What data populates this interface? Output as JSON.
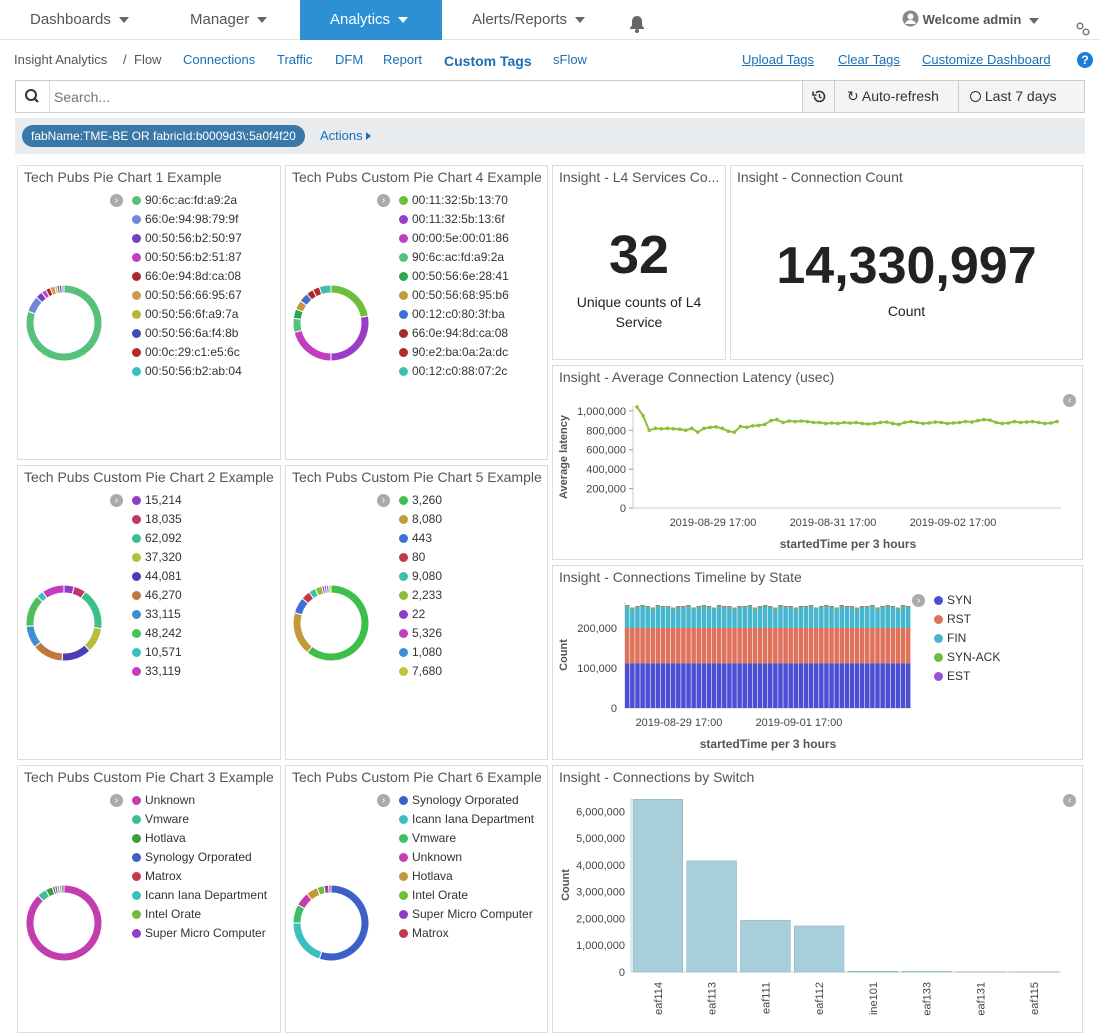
{
  "nav": {
    "dashboards": "Dashboards",
    "manager": "Manager",
    "analytics": "Analytics",
    "alerts": "Alerts/Reports",
    "welcome": "Welcome admin"
  },
  "subnav": {
    "crumb1": "Insight Analytics",
    "sep": "/",
    "crumb2": "Flow",
    "connections": "Connections",
    "traffic": "Traffic",
    "dfm": "DFM",
    "report": "Report",
    "custom_tags": "Custom Tags",
    "sflow": "sFlow",
    "upload": "Upload Tags",
    "clear": "Clear Tags",
    "customize": "Customize Dashboard"
  },
  "search": {
    "placeholder": "Search...",
    "autorefresh": "Auto-refresh",
    "range": "Last 7 days"
  },
  "filter": {
    "query": "fabName:TME-BE OR fabricId:b0009d3\\:5a0f4f20",
    "actions": "Actions"
  },
  "panels": {
    "p1": {
      "title": "Tech Pubs Pie Chart 1 Example",
      "legend": [
        "90:6c:ac:fd:a9:2a",
        "66:0e:94:98:79:9f",
        "00:50:56:b2:50:97",
        "00:50:56:b2:51:87",
        "66:0e:94:8d:ca:08",
        "00:50:56:66:95:67",
        "00:50:56:6f:a9:7a",
        "00:50:56:6a:f4:8b",
        "00:0c:29:c1:e5:6c",
        "00:50:56:b2:ab:04"
      ],
      "colors": [
        "#57c17b",
        "#6f87d8",
        "#6f42c1",
        "#c23dbf",
        "#a52a2a",
        "#d4974b",
        "#b5b53a",
        "#3d4fb5",
        "#b52a2a",
        "#3dbfbf"
      ],
      "slices": [
        80,
        7,
        3,
        2,
        2,
        2,
        1,
        1,
        1,
        1
      ]
    },
    "p4": {
      "title": "Tech Pubs Custom Pie Chart 4 Example",
      "legend": [
        "00:11:32:5b:13:70",
        "00:11:32:5b:13:6f",
        "00:00:5e:00:01:86",
        "90:6c:ac:fd:a9:2a",
        "00:50:56:6e:28:41",
        "00:50:56:68:95:b6",
        "00:12:c0:80:3f:ba",
        "66:0e:94:8d:ca:08",
        "90:e2:ba:0a:2a:dc",
        "00:12:c0:88:07:2c"
      ],
      "colors": [
        "#6cbf3a",
        "#9b3cc8",
        "#c23dbf",
        "#57c17b",
        "#2ea84a",
        "#c29a3a",
        "#3d6fd4",
        "#a52a2a",
        "#b52a2a",
        "#3dbfb0"
      ],
      "slices": [
        22,
        28,
        21,
        6,
        4,
        4,
        4,
        3,
        3,
        5
      ]
    },
    "p2": {
      "title": "Tech Pubs Custom Pie Chart 2 Example",
      "legend": [
        "15,214",
        "18,035",
        "62,092",
        "37,320",
        "44,081",
        "46,270",
        "33,115",
        "48,242",
        "10,571",
        "33,119"
      ],
      "colors": [
        "#8e3dc8",
        "#c2366e",
        "#3dbf8a",
        "#b5bf3a",
        "#4a3db5",
        "#c2783a",
        "#3d8fd4",
        "#4abf5a",
        "#3dbfbf",
        "#c23dbf"
      ],
      "slices": [
        15214,
        18035,
        62092,
        37320,
        44081,
        46270,
        33115,
        48242,
        10571,
        33119
      ]
    },
    "p5": {
      "title": "Tech Pubs Custom Pie Chart 5 Example",
      "legend": [
        "3,260",
        "8,080",
        "443",
        "80",
        "9,080",
        "2,233",
        "22",
        "5,326",
        "1,080",
        "7,680"
      ],
      "colors": [
        "#3dbf4a",
        "#c29a3a",
        "#3d6fd4",
        "#c23a4a",
        "#3dbfb0",
        "#8abf3a",
        "#8e3dc8",
        "#c23dbf",
        "#3d8fd4",
        "#c2c23a"
      ],
      "slices": [
        62,
        19,
        7,
        4,
        3,
        3,
        1,
        1,
        1,
        1
      ]
    },
    "p3": {
      "title": "Tech Pubs Custom Pie Chart 3 Example",
      "legend": [
        "Unknown",
        "Vmware",
        "Hotlava",
        "Synology Orporated",
        "Matrox",
        "Icann Iana Department",
        "Intel Orate",
        "Super Micro Computer"
      ],
      "colors": [
        "#c23dae",
        "#3dbf8a",
        "#3d9f3d",
        "#3d5fc8",
        "#c23a4a",
        "#3dbfbf",
        "#6cbf3a",
        "#8e3dc8"
      ],
      "slices": [
        88,
        4,
        3,
        1,
        1,
        1,
        1,
        1
      ]
    },
    "p6": {
      "title": "Tech Pubs Custom Pie Chart 6 Example",
      "legend": [
        "Synology Orporated",
        "Icann Iana Department",
        "Vmware",
        "Unknown",
        "Hotlava",
        "Intel Orate",
        "Super Micro Computer",
        "Matrox"
      ],
      "colors": [
        "#3d5fc8",
        "#3dbfbf",
        "#3dbf6a",
        "#c23dae",
        "#c29a3a",
        "#6cbf3a",
        "#8e3dc8",
        "#c23a4a"
      ],
      "slices": [
        55,
        20,
        8,
        6,
        5,
        3,
        2,
        1
      ]
    },
    "l4": {
      "title": "Insight - L4 Services Co...",
      "value": "32",
      "caption": "Unique counts of L4 Service"
    },
    "conn": {
      "title": "Insight - Connection Count",
      "value": "14,330,997",
      "caption": "Count"
    },
    "latency": {
      "title": "Insight - Average Connection Latency (usec)"
    },
    "timeline": {
      "title": "Insight - Connections Timeline by State"
    },
    "switch": {
      "title": "Insight - Connections by Switch"
    }
  },
  "chart_data": [
    {
      "type": "line",
      "title": "Insight - Average Connection Latency (usec)",
      "ylabel": "Average latency",
      "xlabel": "startedTime per 3 hours",
      "yticks": [
        "0",
        "200,000",
        "400,000",
        "600,000",
        "800,000",
        "1,000,000"
      ],
      "xticks": [
        "2019-08-29 17:00",
        "2019-08-31 17:00",
        "2019-09-02 17:00"
      ],
      "ylim": [
        0,
        1050000
      ],
      "color": "#8dbf3a",
      "values": [
        1040000,
        950000,
        800000,
        820000,
        815000,
        820000,
        815000,
        812000,
        800000,
        820000,
        780000,
        820000,
        830000,
        835000,
        820000,
        790000,
        780000,
        840000,
        830000,
        845000,
        850000,
        860000,
        900000,
        910000,
        880000,
        895000,
        890000,
        895000,
        890000,
        880000,
        880000,
        870000,
        875000,
        870000,
        880000,
        875000,
        880000,
        870000,
        865000,
        870000,
        880000,
        885000,
        870000,
        860000,
        880000,
        890000,
        880000,
        870000,
        875000,
        885000,
        880000,
        870000,
        875000,
        880000,
        890000,
        885000,
        900000,
        910000,
        905000,
        880000,
        870000,
        875000,
        890000,
        880000,
        885000,
        890000,
        880000,
        870000,
        875000,
        890000
      ]
    },
    {
      "type": "bar",
      "stacked": true,
      "title": "Insight - Connections Timeline by State",
      "ylabel": "Count",
      "xlabel": "startedTime per 3 hours",
      "yticks": [
        "0",
        "100,000",
        "200,000"
      ],
      "xticks": [
        "2019-08-29 17:00",
        "2019-09-01 17:00"
      ],
      "ylim": [
        0,
        265000
      ],
      "series": [
        {
          "name": "SYN",
          "color": "#4a4fd4",
          "value": 112000
        },
        {
          "name": "RST",
          "color": "#e0715a",
          "value": 88000
        },
        {
          "name": "FIN",
          "color": "#47b7cf",
          "value": 50000
        },
        {
          "name": "SYN-ACK",
          "color": "#6cbf3a",
          "value": 3000
        },
        {
          "name": "EST",
          "color": "#9b4fd4",
          "value": 2000
        }
      ]
    },
    {
      "type": "bar",
      "title": "Insight - Connections by Switch",
      "ylabel": "Count",
      "yticks": [
        "0",
        "1,000,000",
        "2,000,000",
        "3,000,000",
        "4,000,000",
        "5,000,000",
        "6,000,000"
      ],
      "ylim": [
        0,
        6500000
      ],
      "color": "#a8cfd9",
      "categories": [
        "eaf114",
        "eaf113",
        "eaf111",
        "eaf112",
        "ine101",
        "eaf133",
        "eaf131",
        "eaf115"
      ],
      "values": [
        6450000,
        4150000,
        1930000,
        1720000,
        30000,
        20000,
        10000,
        5000
      ]
    }
  ]
}
